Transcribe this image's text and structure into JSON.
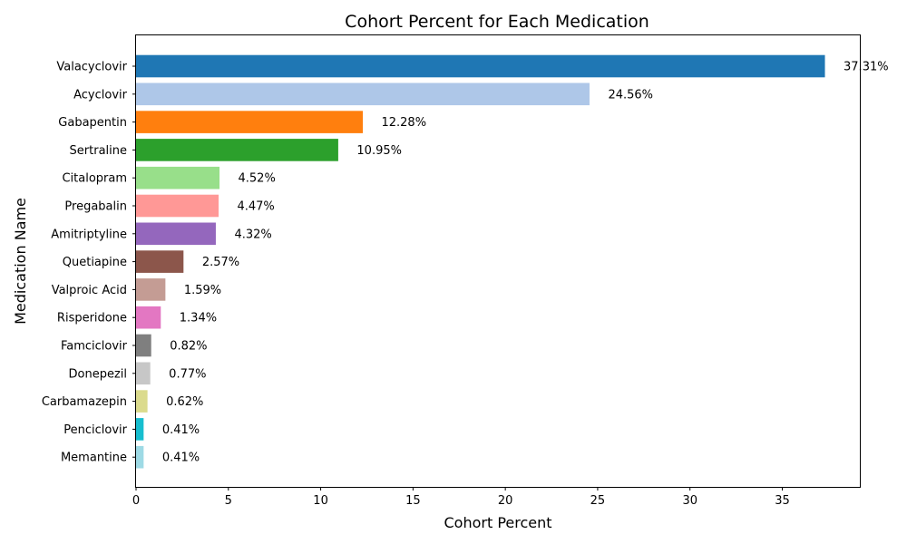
{
  "chart_data": {
    "type": "bar",
    "orientation": "horizontal",
    "title": "Cohort Percent for Each Medication",
    "xlabel": "Cohort Percent",
    "ylabel": "Medication Name",
    "xlim": [
      0,
      39.2
    ],
    "xticks": [
      0,
      5,
      10,
      15,
      20,
      25,
      30,
      35
    ],
    "grid": false,
    "legend": "none",
    "categories": [
      "Valacyclovir",
      "Acyclovir",
      "Gabapentin",
      "Sertraline",
      "Citalopram",
      "Pregabalin",
      "Amitriptyline",
      "Quetiapine",
      "Valproic Acid",
      "Risperidone",
      "Famciclovir",
      "Donepezil",
      "Carbamazepin",
      "Penciclovir",
      "Memantine"
    ],
    "values": [
      37.31,
      24.56,
      12.28,
      10.95,
      4.52,
      4.47,
      4.32,
      2.57,
      1.59,
      1.34,
      0.82,
      0.77,
      0.62,
      0.41,
      0.41
    ],
    "data_labels": [
      "37.31%",
      "24.56%",
      "12.28%",
      "10.95%",
      "4.52%",
      "4.47%",
      "4.32%",
      "2.57%",
      "1.59%",
      "1.34%",
      "0.82%",
      "0.77%",
      "0.62%",
      "0.41%",
      "0.41%"
    ],
    "colors": [
      "#1f77b4",
      "#aec7e8",
      "#ff7f0e",
      "#2ca02c",
      "#98df8a",
      "#ff9896",
      "#9467bd",
      "#8c564b",
      "#c49c94",
      "#e377c2",
      "#7f7f7f",
      "#c7c7c7",
      "#dbdb8d",
      "#17becf",
      "#9edae5"
    ]
  }
}
